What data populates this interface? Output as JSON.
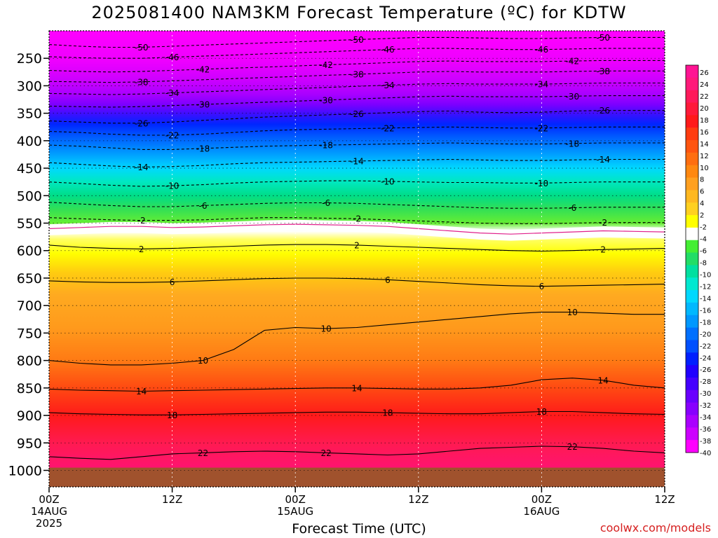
{
  "title": "2025081400 NAM3KM Forecast Temperature (ºC) for KDTW",
  "watermark": "coolwx.com/models",
  "chart_data": {
    "type": "heatmap",
    "title": "2025081400 NAM3KM Forecast Temperature (ºC) for KDTW",
    "xlabel": "Forecast Time (UTC)",
    "ylabel": "",
    "x_range_hours": [
      0,
      60
    ],
    "x_ticks": [
      {
        "hour": 0,
        "lines": [
          "00Z",
          "14AUG",
          "2025"
        ]
      },
      {
        "hour": 12,
        "lines": [
          "12Z"
        ]
      },
      {
        "hour": 24,
        "lines": [
          "00Z",
          "15AUG"
        ]
      },
      {
        "hour": 36,
        "lines": [
          "12Z"
        ]
      },
      {
        "hour": 48,
        "lines": [
          "00Z",
          "16AUG"
        ]
      },
      {
        "hour": 60,
        "lines": [
          "12Z"
        ]
      }
    ],
    "y_ticks_hpa": [
      250,
      300,
      350,
      400,
      450,
      500,
      550,
      600,
      650,
      700,
      750,
      800,
      850,
      900,
      950,
      1000
    ],
    "y_range_hpa": [
      200,
      1030
    ],
    "colorbar_labels": [
      26,
      24,
      22,
      20,
      18,
      16,
      14,
      12,
      10,
      8,
      6,
      4,
      2,
      -2,
      -4,
      -6,
      -8,
      -10,
      -12,
      -14,
      -16,
      -18,
      -20,
      -22,
      -24,
      -26,
      -28,
      -30,
      -32,
      -34,
      -36,
      -38,
      -40
    ],
    "colorbar_colors": [
      "#ff1493",
      "#ff1a7a",
      "#ff1a5a",
      "#ff1a3a",
      "#ff1a1a",
      "#ff3c10",
      "#ff5510",
      "#ff6e10",
      "#ff8810",
      "#ffa020",
      "#ffb820",
      "#ffd020",
      "#ffff00",
      "#ffffff",
      "#44ee33",
      "#22dd66",
      "#00e0a0",
      "#00e8d0",
      "#00d8ff",
      "#00b8ff",
      "#0098ff",
      "#0070ff",
      "#0050ff",
      "#0020ff",
      "#2000ff",
      "#4400ff",
      "#6a00ff",
      "#8800ff",
      "#aa00ff",
      "#cc00ff",
      "#ff00ff"
    ],
    "freezing_level_hpa": [
      560,
      558,
      556,
      556,
      558,
      557,
      555,
      553,
      552,
      553,
      554,
      556,
      560,
      564,
      568,
      570,
      568,
      566,
      564,
      565,
      566
    ],
    "ground_hpa": 995,
    "dashed_contours": [
      {
        "label": -50,
        "p": [
          225,
          228,
          230,
          230,
          228,
          226,
          224,
          222,
          220,
          218,
          216,
          214,
          212,
          212,
          213,
          214,
          214,
          213,
          212,
          212,
          212
        ]
      },
      {
        "label": -46,
        "p": [
          247,
          249,
          250,
          250,
          248,
          246,
          244,
          242,
          240,
          238,
          236,
          234,
          232,
          232,
          233,
          234,
          234,
          233,
          232,
          232,
          232
        ]
      },
      {
        "label": -42,
        "p": [
          272,
          274,
          275,
          274,
          272,
          270,
          268,
          266,
          264,
          262,
          260,
          258,
          256,
          255,
          256,
          256,
          256,
          255,
          254,
          254,
          254
        ]
      },
      {
        "label": -38,
        "p": [
          292,
          293,
          294,
          293,
          291,
          289,
          287,
          285,
          283,
          281,
          279,
          277,
          275,
          274,
          275,
          275,
          275,
          274,
          273,
          273,
          273
        ]
      },
      {
        "label": -34,
        "p": [
          314,
          315,
          316,
          315,
          313,
          311,
          309,
          307,
          305,
          303,
          301,
          299,
          297,
          296,
          297,
          297,
          297,
          296,
          295,
          295,
          295
        ]
      },
      {
        "label": -30,
        "p": [
          337,
          338,
          339,
          338,
          336,
          334,
          332,
          330,
          328,
          326,
          324,
          322,
          320,
          319,
          320,
          320,
          320,
          319,
          318,
          318,
          318
        ]
      },
      {
        "label": -26,
        "p": [
          364,
          366,
          368,
          368,
          366,
          363,
          360,
          357,
          355,
          353,
          351,
          349,
          347,
          346,
          348,
          349,
          348,
          346,
          345,
          345,
          345
        ]
      },
      {
        "label": -22,
        "p": [
          383,
          385,
          388,
          390,
          390,
          388,
          385,
          382,
          380,
          379,
          378,
          377,
          376,
          375,
          376,
          377,
          377,
          376,
          375,
          375,
          375
        ]
      },
      {
        "label": -18,
        "p": [
          408,
          410,
          413,
          416,
          416,
          414,
          412,
          410,
          409,
          408,
          407,
          406,
          405,
          404,
          405,
          406,
          406,
          405,
          404,
          404,
          404
        ]
      },
      {
        "label": -14,
        "p": [
          440,
          443,
          446,
          448,
          447,
          445,
          442,
          440,
          439,
          438,
          437,
          436,
          435,
          434,
          435,
          436,
          436,
          435,
          434,
          434,
          434
        ]
      },
      {
        "label": -10,
        "p": [
          475,
          478,
          481,
          483,
          482,
          480,
          477,
          475,
          474,
          473,
          473,
          474,
          475,
          476,
          476,
          477,
          477,
          476,
          475,
          475,
          475
        ]
      },
      {
        "label": -6,
        "p": [
          512,
          515,
          518,
          520,
          520,
          518,
          516,
          514,
          513,
          513,
          514,
          516,
          518,
          520,
          522,
          523,
          523,
          522,
          521,
          521,
          521
        ]
      },
      {
        "label": -2,
        "p": [
          540,
          542,
          544,
          545,
          545,
          544,
          542,
          540,
          540,
          541,
          542,
          544,
          546,
          548,
          550,
          551,
          551,
          550,
          549,
          549,
          549
        ]
      }
    ],
    "solid_contours": [
      {
        "label": 2,
        "p": [
          590,
          594,
          596,
          597,
          596,
          594,
          592,
          590,
          589,
          589,
          590,
          592,
          594,
          596,
          598,
          600,
          601,
          600,
          598,
          597,
          596
        ]
      },
      {
        "label": 6,
        "p": [
          655,
          657,
          658,
          658,
          657,
          655,
          653,
          651,
          650,
          650,
          651,
          653,
          656,
          659,
          662,
          664,
          665,
          664,
          663,
          662,
          661
        ]
      },
      {
        "label": 10,
        "p": [
          800,
          805,
          808,
          808,
          805,
          800,
          780,
          745,
          740,
          742,
          740,
          735,
          730,
          725,
          720,
          715,
          712,
          712,
          714,
          716,
          716
        ]
      },
      {
        "label": 14,
        "p": [
          852,
          854,
          855,
          856,
          855,
          854,
          853,
          852,
          851,
          850,
          850,
          851,
          852,
          852,
          850,
          845,
          835,
          832,
          836,
          845,
          850
        ]
      },
      {
        "label": 18,
        "p": [
          895,
          897,
          898,
          899,
          899,
          898,
          897,
          896,
          895,
          894,
          894,
          895,
          896,
          897,
          897,
          895,
          893,
          893,
          895,
          897,
          898
        ]
      },
      {
        "label": 22,
        "p": [
          975,
          978,
          980,
          975,
          970,
          968,
          966,
          965,
          966,
          968,
          970,
          972,
          970,
          965,
          960,
          958,
          956,
          957,
          960,
          965,
          968
        ]
      }
    ]
  }
}
